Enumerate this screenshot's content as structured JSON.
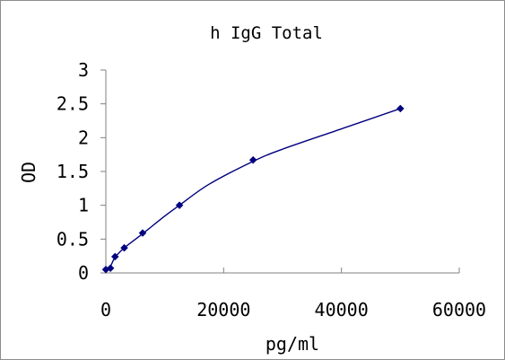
{
  "chart_data": {
    "type": "scatter",
    "title": "h IgG Total",
    "xlabel": "pg/ml",
    "ylabel": "OD",
    "xlim": [
      0,
      60000
    ],
    "ylim": [
      0,
      3
    ],
    "xticks": [
      "0",
      "20000",
      "40000",
      "60000"
    ],
    "yticks": [
      "0",
      "0.5",
      "1",
      "1.5",
      "2",
      "2.5",
      "3"
    ],
    "grid": false,
    "legend": "none",
    "series": [
      {
        "x": [
          0,
          781,
          1563,
          3125,
          6250,
          12500,
          25000,
          50000
        ],
        "y": [
          0.05,
          0.07,
          0.24,
          0.37,
          0.59,
          1.0,
          1.67,
          2.43
        ]
      }
    ],
    "curve": {
      "x": [
        0,
        781,
        1563,
        3125,
        6250,
        10000,
        12500,
        17500,
        25000,
        30000,
        40000,
        50000
      ],
      "y": [
        0.05,
        0.1,
        0.23,
        0.37,
        0.58,
        0.84,
        1.0,
        1.31,
        1.65,
        1.83,
        2.13,
        2.43
      ]
    },
    "colors": {
      "line": "#00007f",
      "marker": "#00007f",
      "axis": "#808080"
    }
  }
}
